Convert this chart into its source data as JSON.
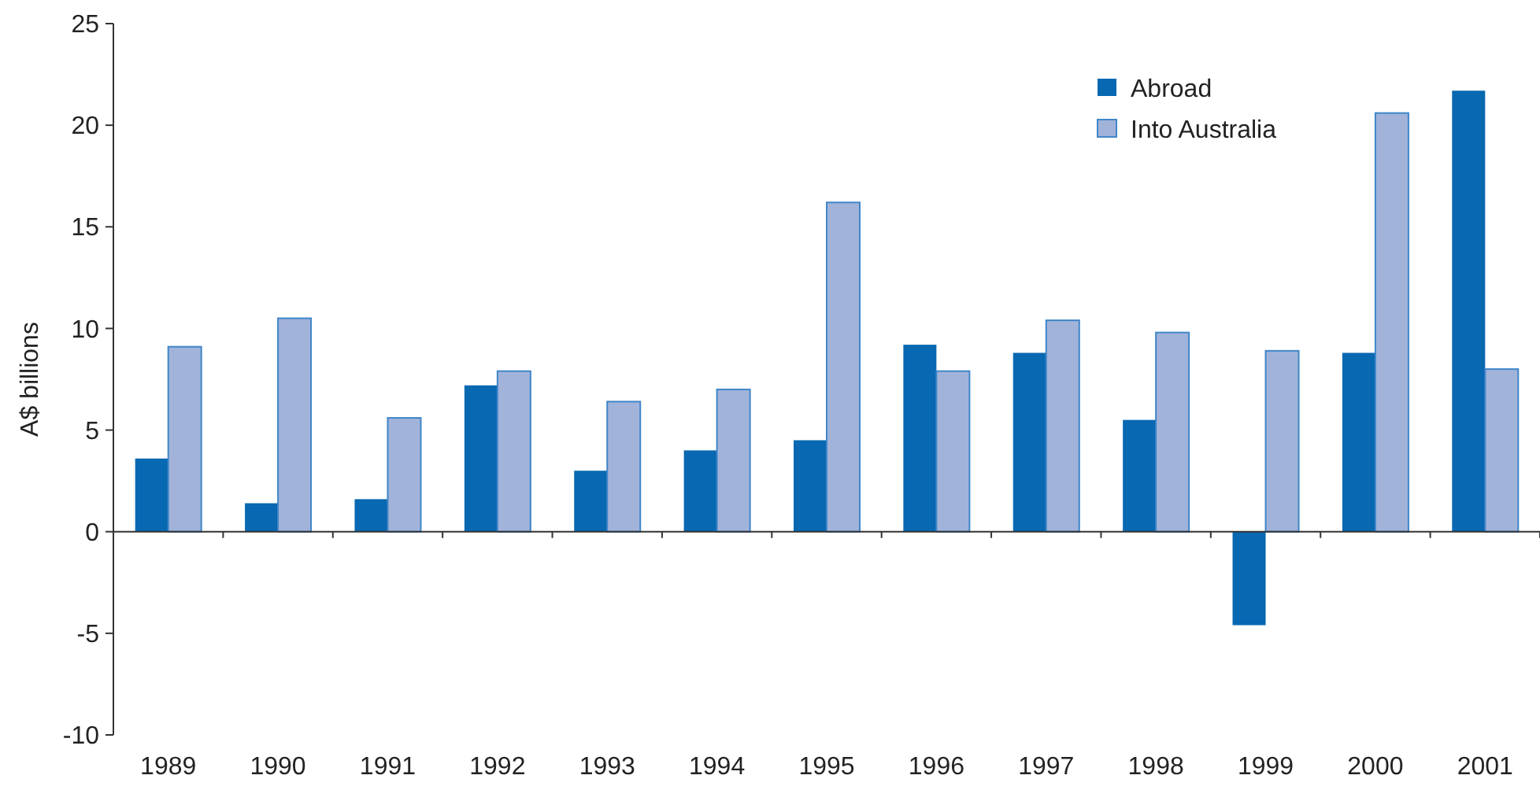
{
  "chart_data": {
    "type": "bar",
    "ylabel": "A$ billions",
    "categories": [
      "1989",
      "1990",
      "1991",
      "1992",
      "1993",
      "1994",
      "1995",
      "1996",
      "1997",
      "1998",
      "1999",
      "2000",
      "2001"
    ],
    "series": [
      {
        "name": "Abroad",
        "color": "#0868b1",
        "values": [
          3.6,
          1.4,
          1.6,
          7.2,
          3.0,
          4.0,
          4.5,
          9.2,
          8.8,
          5.5,
          -4.6,
          8.8,
          21.7
        ]
      },
      {
        "name": "Into Australia",
        "color": "#a2b3da",
        "values": [
          9.1,
          10.5,
          5.6,
          7.9,
          6.4,
          7.0,
          16.2,
          7.9,
          10.4,
          9.8,
          8.9,
          20.6,
          8.0
        ]
      }
    ],
    "ylim": [
      -10,
      25
    ],
    "yticks": [
      -10,
      -5,
      0,
      5,
      10,
      15,
      20,
      25
    ],
    "legend": "top right"
  }
}
